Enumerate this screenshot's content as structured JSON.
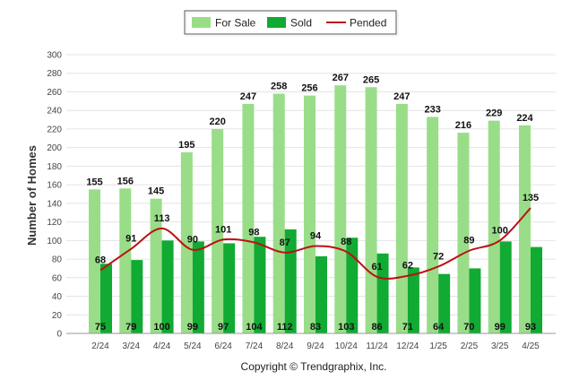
{
  "chart_data": {
    "type": "bar",
    "categories": [
      "2/24",
      "3/24",
      "4/24",
      "5/24",
      "6/24",
      "7/24",
      "8/24",
      "9/24",
      "10/24",
      "11/24",
      "12/24",
      "1/25",
      "2/25",
      "3/25",
      "4/25"
    ],
    "series": [
      {
        "name": "For Sale",
        "type": "bar",
        "color": "#99dd88",
        "values": [
          155,
          156,
          145,
          195,
          220,
          247,
          258,
          256,
          267,
          265,
          247,
          233,
          216,
          229,
          224
        ]
      },
      {
        "name": "Sold",
        "type": "bar",
        "color": "#11aa33",
        "values": [
          75,
          79,
          100,
          99,
          97,
          104,
          112,
          83,
          103,
          86,
          71,
          64,
          70,
          99,
          93
        ]
      },
      {
        "name": "Pended",
        "type": "line",
        "color": "#bb1111",
        "values": [
          68,
          91,
          113,
          90,
          101,
          98,
          87,
          94,
          88,
          61,
          62,
          72,
          89,
          100,
          135
        ]
      }
    ],
    "ylabel": "Number of Homes",
    "ylim": [
      0,
      300
    ],
    "yticks": [
      0,
      20,
      40,
      60,
      80,
      100,
      120,
      140,
      160,
      180,
      200,
      220,
      240,
      260,
      280,
      300
    ],
    "grid": true,
    "legend_position": "top-center"
  },
  "copyright": "Copyright © Trendgraphix, Inc."
}
